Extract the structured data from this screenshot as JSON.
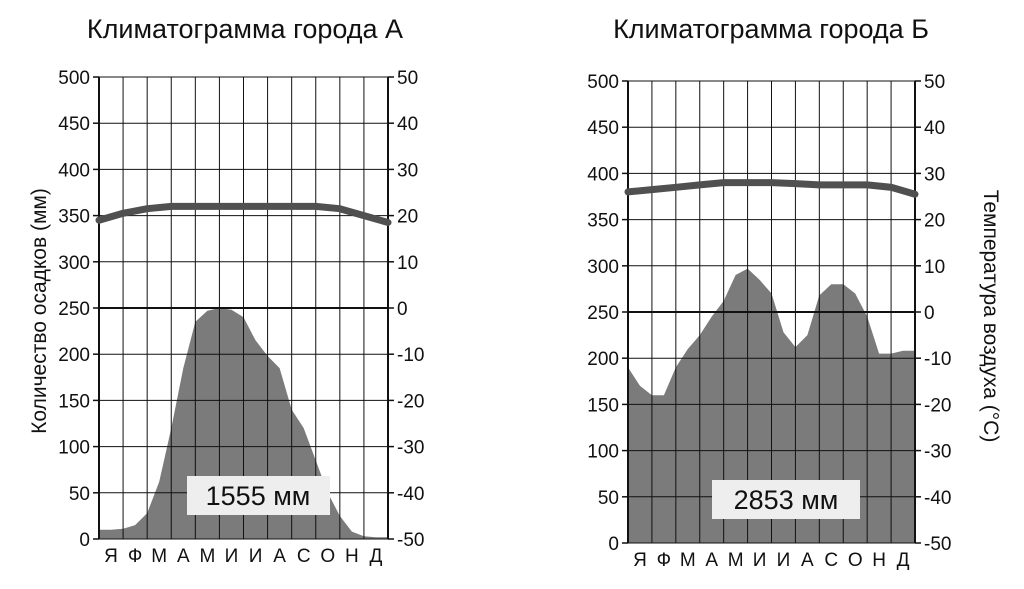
{
  "chart_data": [
    {
      "type": "area",
      "title": "Климатограмма города А",
      "ylabel": "Количество осадков  (мм)",
      "y2label": "",
      "categories": [
        "Я",
        "Ф",
        "М",
        "А",
        "М",
        "И",
        "И",
        "А",
        "С",
        "О",
        "Н",
        "Д"
      ],
      "precip_ticks": [
        "500",
        "450",
        "400",
        "350",
        "300",
        "250",
        "200",
        "150",
        "100",
        "50",
        "0"
      ],
      "temp_ticks": [
        "50",
        "40",
        "30",
        "20",
        "10",
        "0",
        "-10",
        "-20",
        "-30",
        "-40",
        "-50"
      ],
      "ylim": [
        0,
        500
      ],
      "y2lim": [
        -50,
        50
      ],
      "grid": true,
      "series": [
        {
          "kind": "precipitation",
          "x": [
            0,
            0.5,
            1,
            1.5,
            2,
            2.5,
            3,
            3.5,
            4,
            4.5,
            5,
            5.5,
            6,
            6.5,
            7,
            7.5,
            8,
            8.5,
            9,
            9.5,
            10,
            10.5,
            11,
            11.5,
            12
          ],
          "values": [
            10,
            10,
            11,
            15,
            28,
            62,
            120,
            185,
            235,
            247,
            250,
            248,
            240,
            215,
            198,
            185,
            140,
            120,
            85,
            50,
            25,
            8,
            3,
            2,
            2
          ]
        },
        {
          "kind": "temperature",
          "x": [
            0,
            1,
            2,
            3,
            4,
            5,
            6,
            7,
            8,
            9,
            10,
            11,
            12
          ],
          "values": [
            19,
            20.5,
            21.5,
            22,
            22,
            22,
            22,
            22,
            22,
            22,
            21.5,
            20,
            18.5
          ]
        }
      ],
      "total_label": "1555 мм"
    },
    {
      "type": "area",
      "title": "Климатограмма города Б",
      "ylabel": "",
      "y2label": "Температура воздуха  (°С)",
      "categories": [
        "Я",
        "Ф",
        "М",
        "А",
        "М",
        "И",
        "И",
        "А",
        "С",
        "О",
        "Н",
        "Д"
      ],
      "precip_ticks": [
        "500",
        "450",
        "400",
        "350",
        "300",
        "250",
        "200",
        "150",
        "100",
        "50",
        "0"
      ],
      "temp_ticks": [
        "50",
        "40",
        "30",
        "20",
        "10",
        "0",
        "-10",
        "-20",
        "-30",
        "-40",
        "-50"
      ],
      "ylim": [
        0,
        500
      ],
      "y2lim": [
        -50,
        50
      ],
      "grid": true,
      "series": [
        {
          "kind": "precipitation",
          "x": [
            0,
            0.5,
            1,
            1.5,
            2,
            2.5,
            3,
            3.5,
            4,
            4.5,
            5,
            5.5,
            6,
            6.5,
            7,
            7.5,
            8,
            8.5,
            9,
            9.5,
            10,
            10.5,
            11,
            11.5,
            12
          ],
          "values": [
            190,
            170,
            160,
            160,
            190,
            210,
            225,
            245,
            262,
            290,
            297,
            285,
            270,
            228,
            212,
            225,
            268,
            280,
            280,
            270,
            245,
            205,
            205,
            208,
            208
          ]
        },
        {
          "kind": "temperature",
          "x": [
            0,
            1,
            2,
            3,
            4,
            5,
            6,
            7,
            8,
            9,
            10,
            11,
            12
          ],
          "values": [
            26,
            26.5,
            27,
            27.5,
            28,
            28,
            28,
            27.8,
            27.5,
            27.5,
            27.5,
            27,
            25.5
          ]
        }
      ],
      "total_label": "2853 мм"
    }
  ],
  "colors": {
    "precip_fill": "#7b7b7b",
    "temp_line": "#505050",
    "grid": "#111111",
    "label_box": "#eeeeee"
  }
}
